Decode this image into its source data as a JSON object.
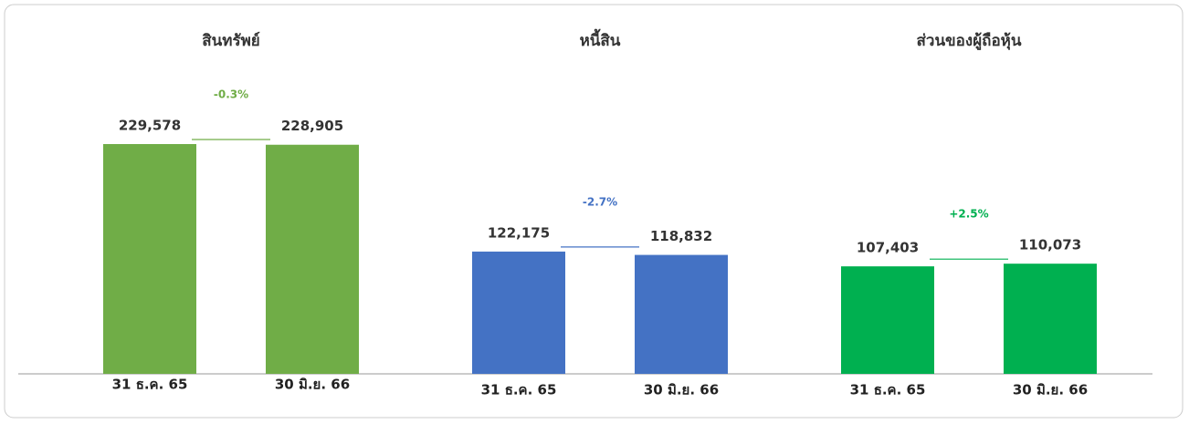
{
  "chart_data": [
    {
      "type": "bar",
      "title": "สินทรัพย์",
      "categories": [
        "31 ธ.ค. 65",
        "30 มิ.ย. 66"
      ],
      "values": [
        229578,
        228905
      ],
      "value_labels": [
        "229,578",
        "228,905"
      ],
      "color": "#70ad47",
      "annotation": "-0.3%"
    },
    {
      "type": "bar",
      "title": "หนี้สิน",
      "categories": [
        "31 ธ.ค. 65",
        "30 มิ.ย. 66"
      ],
      "values": [
        122175,
        118832
      ],
      "value_labels": [
        "122,175",
        "118,832"
      ],
      "color": "#4472c4",
      "annotation": "-2.7%"
    },
    {
      "type": "bar",
      "title": "ส่วนของผู้ถือหุ้น",
      "categories": [
        "31 ธ.ค. 65",
        "30 มิ.ย. 66"
      ],
      "values": [
        107403,
        110073
      ],
      "value_labels": [
        "107,403",
        "110,073"
      ],
      "color": "#00b050",
      "annotation": "+2.5%"
    }
  ]
}
